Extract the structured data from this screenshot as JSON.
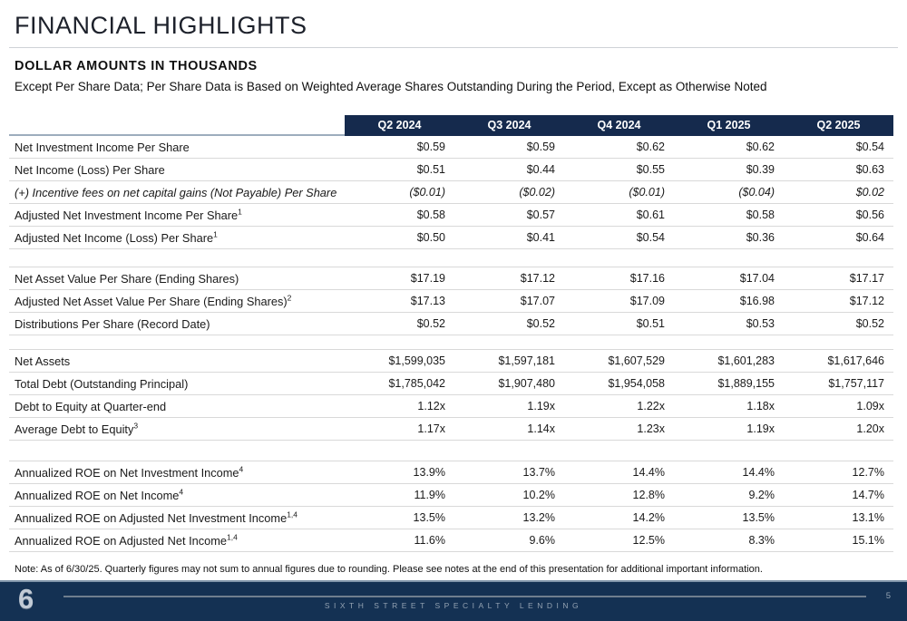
{
  "header": {
    "title": "FINANCIAL HIGHLIGHTS",
    "subtitle": "DOLLAR AMOUNTS IN THOUSANDS",
    "note": "Except Per Share Data; Per Share Data is Based on Weighted Average Shares Outstanding During the Period, Except as Otherwise Noted"
  },
  "table": {
    "columns": [
      "Q2 2024",
      "Q3 2024",
      "Q4 2024",
      "Q1 2025",
      "Q2 2025"
    ],
    "sections": [
      {
        "rows": [
          {
            "label": "Net Investment Income Per Share",
            "sup": "",
            "italic": false,
            "values": [
              "$0.59",
              "$0.59",
              "$0.62",
              "$0.62",
              "$0.54"
            ]
          },
          {
            "label": "Net Income (Loss) Per Share",
            "sup": "",
            "italic": false,
            "values": [
              "$0.51",
              "$0.44",
              "$0.55",
              "$0.39",
              "$0.63"
            ]
          },
          {
            "label": "(+) Incentive fees on net capital gains (Not Payable) Per Share",
            "sup": "",
            "italic": true,
            "values": [
              "($0.01)",
              "($0.02)",
              "($0.01)",
              "($0.04)",
              "$0.02"
            ]
          },
          {
            "label": "Adjusted Net Investment Income Per Share",
            "sup": "1",
            "italic": false,
            "values": [
              "$0.58",
              "$0.57",
              "$0.61",
              "$0.58",
              "$0.56"
            ]
          },
          {
            "label": "Adjusted Net Income (Loss) Per Share",
            "sup": "1",
            "italic": false,
            "values": [
              "$0.50",
              "$0.41",
              "$0.54",
              "$0.36",
              "$0.64"
            ]
          }
        ]
      },
      {
        "rows": [
          {
            "label": "Net Asset Value Per Share (Ending Shares)",
            "sup": "",
            "italic": false,
            "values": [
              "$17.19",
              "$17.12",
              "$17.16",
              "$17.04",
              "$17.17"
            ]
          },
          {
            "label": "Adjusted Net Asset Value Per Share (Ending Shares)",
            "sup": "2",
            "italic": false,
            "values": [
              "$17.13",
              "$17.07",
              "$17.09",
              "$16.98",
              "$17.12"
            ]
          },
          {
            "label": "Distributions Per Share (Record Date)",
            "sup": "",
            "italic": false,
            "values": [
              "$0.52",
              "$0.52",
              "$0.51",
              "$0.53",
              "$0.52"
            ]
          }
        ]
      },
      {
        "rows": [
          {
            "label": "Net Assets",
            "sup": "",
            "italic": false,
            "values": [
              "$1,599,035",
              "$1,597,181",
              "$1,607,529",
              "$1,601,283",
              "$1,617,646"
            ]
          },
          {
            "label": "Total Debt (Outstanding Principal)",
            "sup": "",
            "italic": false,
            "values": [
              "$1,785,042",
              "$1,907,480",
              "$1,954,058",
              "$1,889,155",
              "$1,757,117"
            ]
          },
          {
            "label": "Debt to Equity at Quarter-end",
            "sup": "",
            "italic": false,
            "values": [
              "1.12x",
              "1.19x",
              "1.22x",
              "1.18x",
              "1.09x"
            ]
          },
          {
            "label": "Average Debt to Equity",
            "sup": "3",
            "italic": false,
            "values": [
              "1.17x",
              "1.14x",
              "1.23x",
              "1.19x",
              "1.20x"
            ]
          }
        ]
      },
      {
        "rows": [
          {
            "label": "Annualized ROE on Net Investment Income",
            "sup": "4",
            "italic": false,
            "values": [
              "13.9%",
              "13.7%",
              "14.4%",
              "14.4%",
              "12.7%"
            ]
          },
          {
            "label": "Annualized ROE on Net Income",
            "sup": "4",
            "italic": false,
            "values": [
              "11.9%",
              "10.2%",
              "12.8%",
              "9.2%",
              "14.7%"
            ]
          },
          {
            "label": "Annualized ROE on Adjusted Net Investment Income",
            "sup": "1,4",
            "italic": false,
            "values": [
              "13.5%",
              "13.2%",
              "14.2%",
              "13.5%",
              "13.1%"
            ]
          },
          {
            "label": "Annualized ROE on Adjusted Net Income",
            "sup": "1,4",
            "italic": false,
            "values": [
              "11.6%",
              "9.6%",
              "12.5%",
              "8.3%",
              "15.1%"
            ]
          }
        ]
      }
    ]
  },
  "footnote": "Note: As of 6/30/25. Quarterly figures may not sum to annual figures due to rounding. Please see notes at the end of this presentation for additional important information.",
  "footer": {
    "logo": "6",
    "brand": "SIXTH STREET SPECIALTY LENDING",
    "page_number": "5"
  },
  "colors": {
    "header_band": "#152a4d",
    "footer_bar": "#143153",
    "row_border": "#d9d9d9",
    "steel_line": "#9dadbd",
    "footer_text": "#93a2b2"
  }
}
